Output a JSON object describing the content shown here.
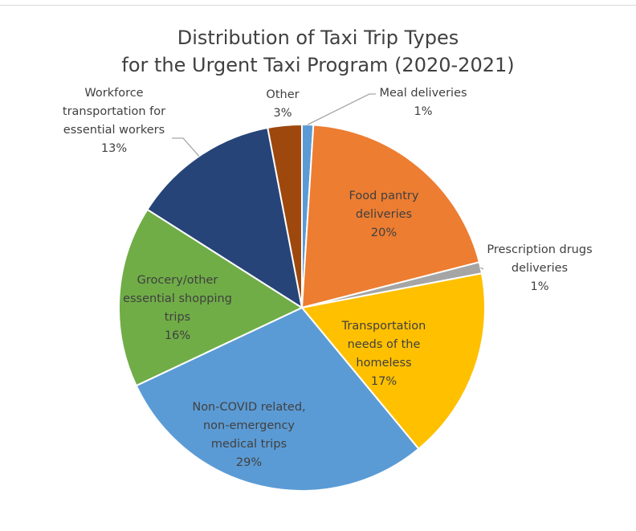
{
  "chart_data": {
    "type": "pie",
    "title_lines": [
      "Distribution of Taxi Trip Types",
      "for the Urgent Taxi Program (2020-2021)"
    ],
    "slices": [
      {
        "label_lines": [
          "Meal deliveries"
        ],
        "value": 1,
        "value_label": "1%",
        "color": "#5b9bd5"
      },
      {
        "label_lines": [
          "Food pantry",
          "deliveries"
        ],
        "value": 20,
        "value_label": "20%",
        "color": "#ed7d31"
      },
      {
        "label_lines": [
          "Prescription drugs",
          "deliveries"
        ],
        "value": 1,
        "value_label": "1%",
        "color": "#a5a5a5"
      },
      {
        "label_lines": [
          "Transportation",
          "needs of the",
          "homeless"
        ],
        "value": 17,
        "value_label": "17%",
        "color": "#ffc000"
      },
      {
        "label_lines": [
          "Non-COVID related,",
          "non-emergency",
          "medical trips"
        ],
        "value": 29,
        "value_label": "29%",
        "color": "#5b9bd5"
      },
      {
        "label_lines": [
          "Grocery/other",
          "essential shopping",
          "trips"
        ],
        "value": 16,
        "value_label": "16%",
        "color": "#70ad47"
      },
      {
        "label_lines": [
          "Workforce",
          "transportation for",
          "essential workers"
        ],
        "value": 13,
        "value_label": "13%",
        "color": "#264478"
      },
      {
        "label_lines": [
          "Other"
        ],
        "value": 3,
        "value_label": "3%",
        "color": "#9e480e"
      }
    ]
  }
}
